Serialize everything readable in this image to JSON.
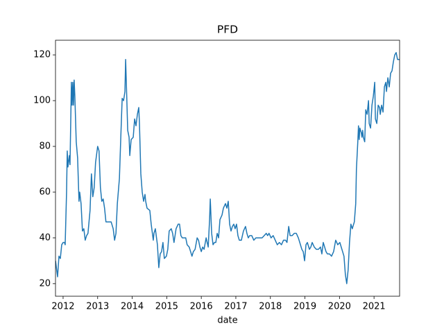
{
  "chart_data": {
    "type": "line",
    "title": "PFD",
    "x_label": "date",
    "x": [
      2011.78,
      2011.84,
      2011.88,
      2011.92,
      2011.96,
      2012.0,
      2012.04,
      2012.06,
      2012.1,
      2012.12,
      2012.14,
      2012.18,
      2012.2,
      2012.24,
      2012.26,
      2012.28,
      2012.3,
      2012.32,
      2012.34,
      2012.38,
      2012.42,
      2012.46,
      2012.48,
      2012.52,
      2012.56,
      2012.6,
      2012.64,
      2012.68,
      2012.72,
      2012.78,
      2012.82,
      2012.86,
      2012.9,
      2012.94,
      2013.0,
      2013.04,
      2013.08,
      2013.12,
      2013.16,
      2013.2,
      2013.24,
      2013.33,
      2013.39,
      2013.45,
      2013.49,
      2013.53,
      2013.57,
      2013.63,
      2013.67,
      2013.71,
      2013.75,
      2013.79,
      2013.81,
      2013.83,
      2013.87,
      2013.91,
      2013.93,
      2013.97,
      2014.03,
      2014.07,
      2014.11,
      2014.15,
      2014.19,
      2014.21,
      2014.25,
      2014.29,
      2014.33,
      2014.37,
      2014.39,
      2014.43,
      2014.51,
      2014.55,
      2014.61,
      2014.63,
      2014.67,
      2014.73,
      2014.77,
      2014.81,
      2014.85,
      2014.89,
      2014.93,
      2014.99,
      2015.03,
      2015.07,
      2015.13,
      2015.17,
      2015.21,
      2015.27,
      2015.33,
      2015.37,
      2015.41,
      2015.45,
      2015.49,
      2015.55,
      2015.59,
      2015.65,
      2015.69,
      2015.73,
      2015.77,
      2015.82,
      2015.88,
      2015.92,
      2015.96,
      2016.0,
      2016.04,
      2016.08,
      2016.14,
      2016.2,
      2016.24,
      2016.26,
      2016.3,
      2016.34,
      2016.38,
      2016.42,
      2016.46,
      2016.5,
      2016.54,
      2016.6,
      2016.64,
      2016.7,
      2016.74,
      2016.78,
      2016.82,
      2016.86,
      2016.9,
      2016.94,
      2016.98,
      2017.02,
      2017.06,
      2017.1,
      2017.16,
      2017.22,
      2017.28,
      2017.32,
      2017.36,
      2017.4,
      2017.46,
      2017.52,
      2017.58,
      2017.64,
      2017.7,
      2017.76,
      2017.82,
      2017.88,
      2017.92,
      2017.96,
      2018.02,
      2018.08,
      2018.14,
      2018.2,
      2018.26,
      2018.32,
      2018.38,
      2018.44,
      2018.48,
      2018.53,
      2018.57,
      2018.63,
      2018.69,
      2018.75,
      2018.81,
      2018.85,
      2018.91,
      2018.95,
      2018.99,
      2019.03,
      2019.07,
      2019.13,
      2019.17,
      2019.21,
      2019.27,
      2019.33,
      2019.39,
      2019.45,
      2019.49,
      2019.53,
      2019.57,
      2019.61,
      2019.65,
      2019.71,
      2019.77,
      2019.83,
      2019.89,
      2019.95,
      2020.01,
      2020.07,
      2020.13,
      2020.17,
      2020.21,
      2020.25,
      2020.29,
      2020.33,
      2020.37,
      2020.43,
      2020.47,
      2020.49,
      2020.53,
      2020.55,
      2020.57,
      2020.59,
      2020.63,
      2020.65,
      2020.67,
      2020.69,
      2020.73,
      2020.76,
      2020.8,
      2020.84,
      2020.86,
      2020.9,
      2020.94,
      2020.98,
      2021.02,
      2021.04,
      2021.08,
      2021.12,
      2021.16,
      2021.18,
      2021.22,
      2021.26,
      2021.3,
      2021.34,
      2021.36,
      2021.4,
      2021.44,
      2021.48,
      2021.52,
      2021.56,
      2021.6,
      2021.64,
      2021.68,
      2021.74
    ],
    "series": [
      {
        "name": "PFD",
        "color": "#1f77b4",
        "values": [
          30,
          23,
          32,
          31,
          37,
          38,
          38,
          37,
          60,
          78,
          71,
          76,
          72,
          108,
          98,
          108,
          98,
          109,
          102,
          82,
          75,
          56,
          60,
          55,
          43,
          44,
          39,
          41,
          42,
          52,
          68,
          58,
          62,
          73,
          80,
          78,
          62,
          56,
          57,
          53,
          47,
          47,
          47,
          44,
          39,
          42,
          55,
          66,
          84,
          101,
          100,
          104,
          118,
          108,
          87,
          84,
          76,
          83,
          84,
          92,
          89,
          94,
          97,
          90,
          68,
          60,
          56,
          59,
          56,
          53,
          52,
          46,
          39,
          42,
          44,
          37,
          27,
          33,
          34,
          38,
          31,
          32,
          35,
          43,
          44,
          42,
          38,
          44,
          46,
          46,
          41,
          40,
          40,
          40,
          37,
          36,
          34,
          32,
          34,
          35,
          40,
          39,
          36,
          34,
          36,
          35,
          40,
          36,
          48,
          57,
          42,
          37,
          38,
          38,
          42,
          40,
          48,
          50,
          53,
          55,
          53,
          56,
          46,
          43,
          45,
          46,
          44,
          46,
          41,
          39,
          39,
          43,
          45,
          42,
          40,
          41,
          41,
          39,
          40,
          40,
          40,
          40,
          41,
          42,
          41,
          42,
          40,
          41,
          39,
          37,
          38,
          37,
          39,
          39,
          38,
          45,
          41,
          41,
          42,
          42,
          40,
          38,
          35,
          34,
          30,
          37,
          38,
          35,
          36,
          38,
          36,
          35,
          35,
          36,
          33,
          38,
          36,
          34,
          33,
          33,
          32,
          34,
          39,
          37,
          38,
          35,
          32,
          24,
          20,
          26,
          38,
          46,
          44,
          47,
          55,
          70,
          82,
          89,
          83,
          88,
          86,
          84,
          87,
          84,
          82,
          96,
          94,
          100,
          90,
          88,
          98,
          102,
          108,
          92,
          90,
          98,
          97,
          94,
          98,
          95,
          106,
          108,
          104,
          110,
          106,
          112,
          113,
          117,
          120,
          121,
          118,
          118
        ]
      }
    ],
    "xlim": [
      2011.78,
      2021.74
    ],
    "xticks": [
      2012,
      2013,
      2014,
      2015,
      2016,
      2017,
      2018,
      2019,
      2020,
      2021
    ],
    "ylim": [
      14.5,
      126.4
    ],
    "yticks": [
      20,
      40,
      60,
      80,
      100,
      120
    ],
    "grid": false
  }
}
